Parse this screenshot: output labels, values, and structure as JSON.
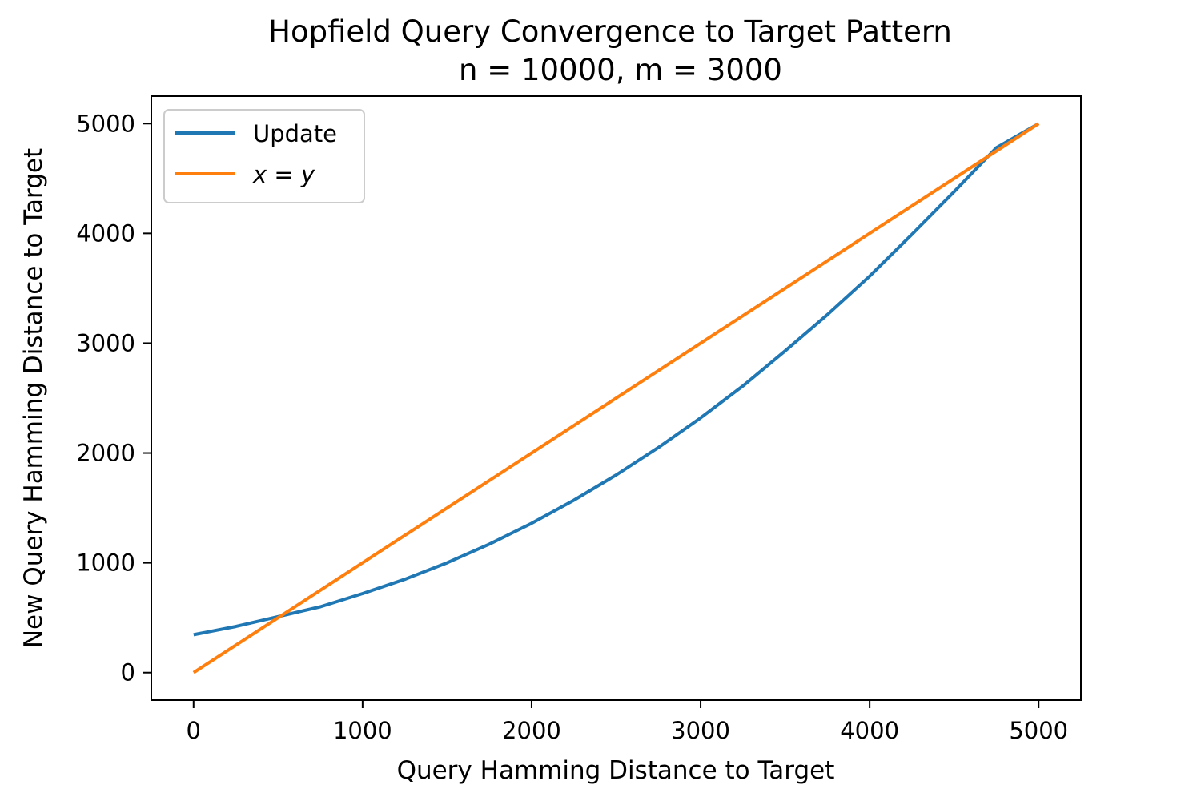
{
  "chart_data": {
    "type": "line",
    "title": "Hopfield Query Convergence to Target Pattern",
    "subtitle": "n = 10000, m = 3000",
    "xlabel": "Query Hamming Distance to Target",
    "ylabel": "New Query Hamming Distance to Target",
    "xlim": [
      -250,
      5250
    ],
    "ylim": [
      -250,
      5250
    ],
    "xticks": [
      0,
      1000,
      2000,
      3000,
      4000,
      5000
    ],
    "yticks": [
      0,
      1000,
      2000,
      3000,
      4000,
      5000
    ],
    "grid": false,
    "legend_position": "top-left",
    "series": [
      {
        "name": "Update",
        "color": "#1f77b4",
        "x": [
          0,
          250,
          500,
          750,
          1000,
          1250,
          1500,
          1750,
          2000,
          2250,
          2500,
          2750,
          3000,
          3250,
          3500,
          3750,
          4000,
          4250,
          4500,
          4750,
          5000
        ],
        "y": [
          345,
          420,
          510,
          600,
          720,
          850,
          1000,
          1170,
          1360,
          1570,
          1800,
          2050,
          2320,
          2610,
          2930,
          3260,
          3610,
          3990,
          4380,
          4780,
          5000
        ]
      },
      {
        "name": "x = y",
        "color": "#ff7f0e",
        "x": [
          0,
          5000
        ],
        "y": [
          0,
          5000
        ]
      }
    ]
  }
}
